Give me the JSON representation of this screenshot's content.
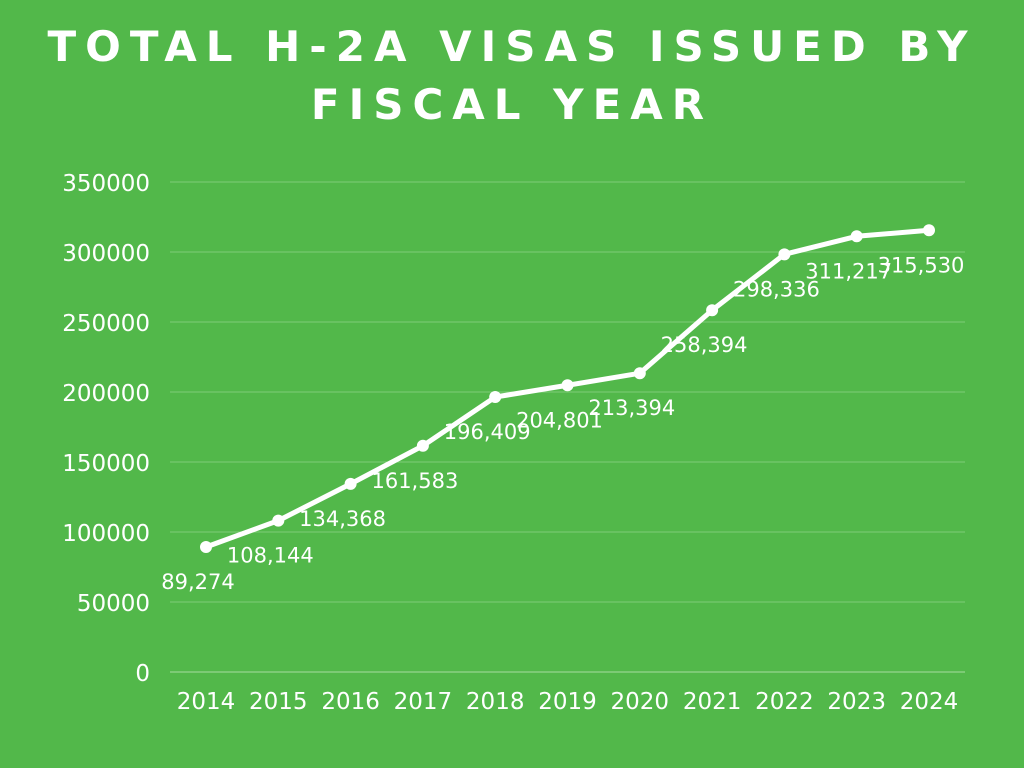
{
  "chart_data": {
    "type": "line",
    "title_lines": [
      "TOTAL H-2A VISAS ISSUED BY",
      "FISCAL YEAR"
    ],
    "title": "TOTAL H-2A VISAS ISSUED BY FISCAL YEAR",
    "categories": [
      "2014",
      "2015",
      "2016",
      "2017",
      "2018",
      "2019",
      "2020",
      "2021",
      "2022",
      "2023",
      "2024"
    ],
    "values": [
      89274,
      108144,
      134368,
      161583,
      196409,
      204801,
      213394,
      258394,
      298336,
      311217,
      315530
    ],
    "data_labels": [
      "89,274",
      "108,144",
      "134,368",
      "161,583",
      "196,409",
      "204,801",
      "213,394",
      "258,394",
      "298,336",
      "311,217",
      "315,530"
    ],
    "y_ticks": [
      0,
      50000,
      100000,
      150000,
      200000,
      250000,
      300000,
      350000
    ],
    "y_tick_labels": [
      "0",
      "50000",
      "100000",
      "150000",
      "200000",
      "250000",
      "300000",
      "350000"
    ],
    "ylim": [
      0,
      350000
    ],
    "grid": true,
    "legend": "none",
    "colors": {
      "background": "#52b84a",
      "line": "#ffffff",
      "text": "#ffffff",
      "grid": "#7fcd78"
    }
  }
}
